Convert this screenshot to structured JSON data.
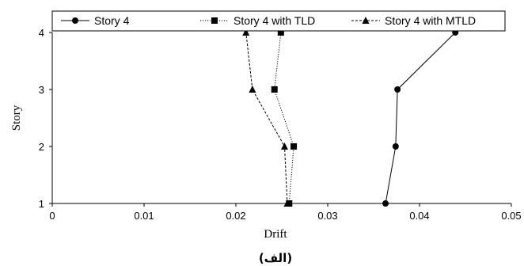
{
  "chart_data": {
    "type": "line",
    "xlabel": "Drift",
    "ylabel": "Story",
    "caption": "(الف)",
    "xlim": [
      0,
      0.05
    ],
    "ylim": [
      1,
      4
    ],
    "xticks": [
      "0",
      "0.01",
      "0.02",
      "0.03",
      "0.04",
      "0.05"
    ],
    "yticks": [
      "1",
      "2",
      "3",
      "4"
    ],
    "legend_position": "top",
    "series": [
      {
        "name": "Story 4",
        "marker": "circle",
        "line_style": "solid",
        "color": "#000000",
        "points": [
          {
            "x": 0.0363,
            "y": 1
          },
          {
            "x": 0.0374,
            "y": 2
          },
          {
            "x": 0.0376,
            "y": 3
          },
          {
            "x": 0.0439,
            "y": 4
          }
        ]
      },
      {
        "name": "Story 4 with TLD",
        "marker": "square",
        "line_style": "dotted",
        "color": "#000000",
        "points": [
          {
            "x": 0.0258,
            "y": 1
          },
          {
            "x": 0.0263,
            "y": 2
          },
          {
            "x": 0.0242,
            "y": 3
          },
          {
            "x": 0.0249,
            "y": 4
          }
        ]
      },
      {
        "name": "Story 4 with MTLD",
        "marker": "triangle",
        "line_style": "dashed",
        "color": "#000000",
        "points": [
          {
            "x": 0.0256,
            "y": 1
          },
          {
            "x": 0.0253,
            "y": 2
          },
          {
            "x": 0.0218,
            "y": 3
          },
          {
            "x": 0.0211,
            "y": 4
          }
        ]
      }
    ]
  }
}
